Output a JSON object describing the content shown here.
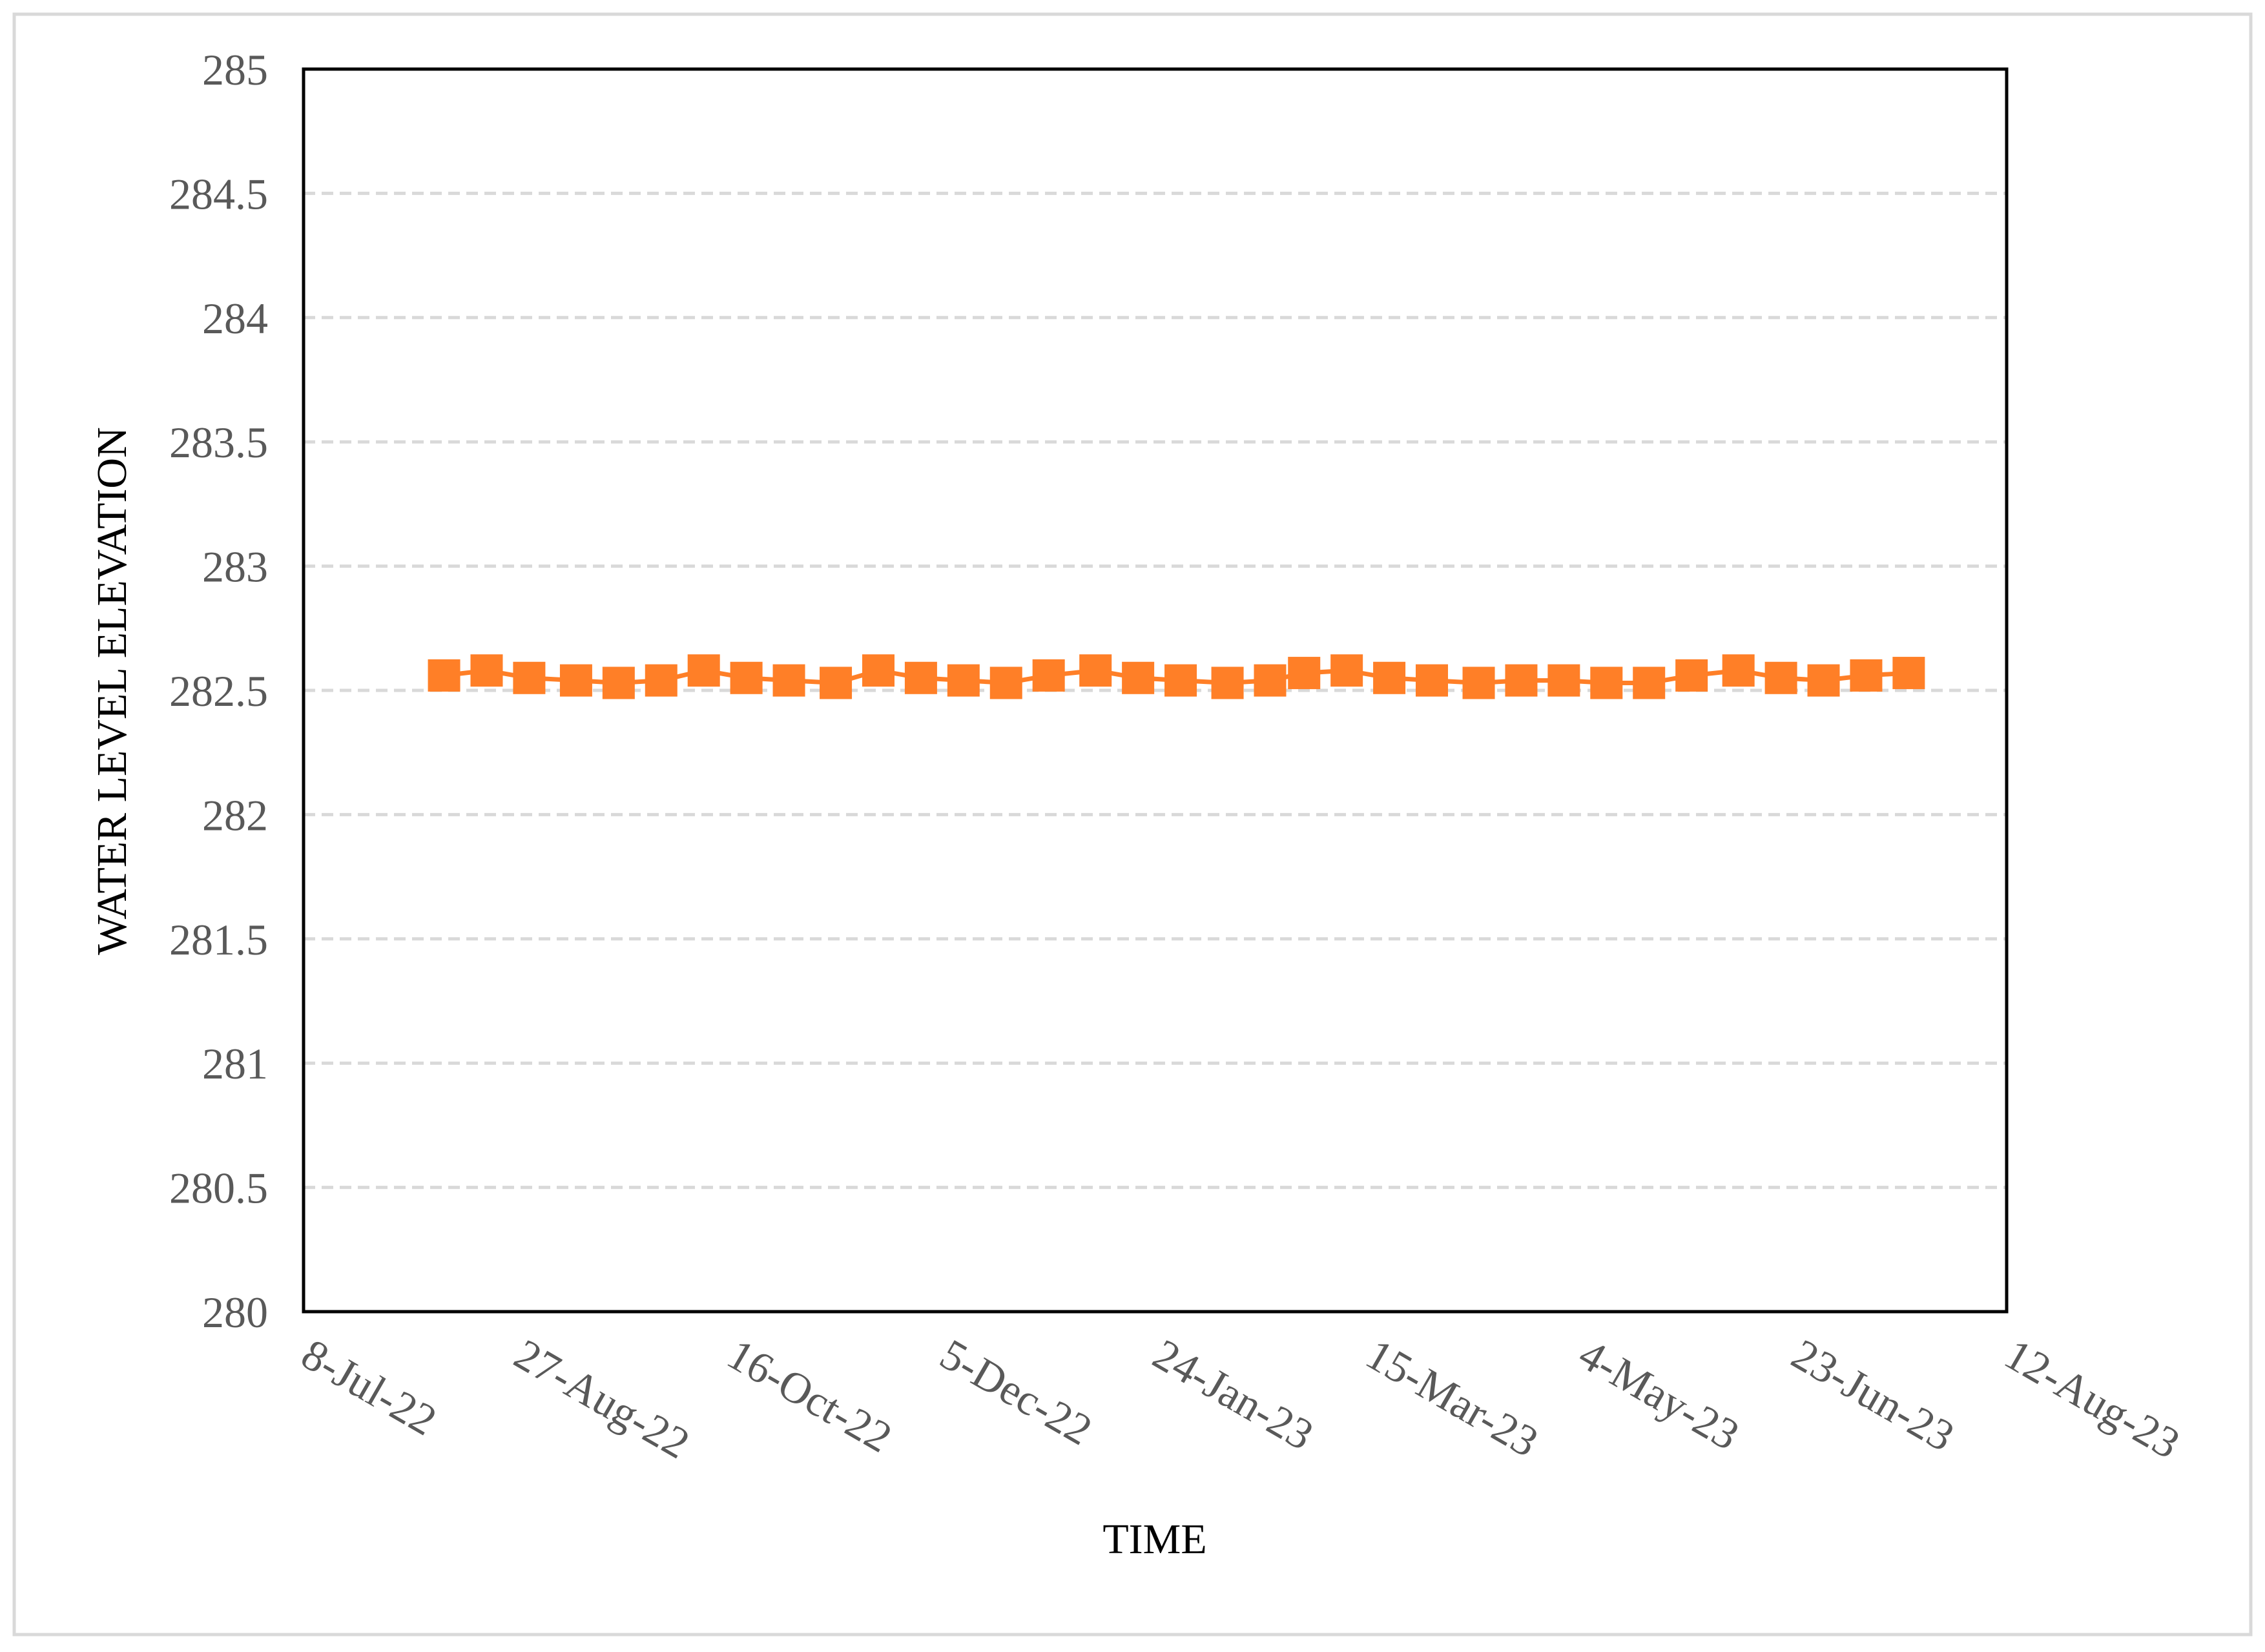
{
  "chart_data": {
    "type": "line",
    "x_label": "TIME",
    "y_label": "WATER LEVEL ELEVATION",
    "color": "#ff7f27",
    "marker": "square",
    "grid": true,
    "x": [
      "2022-08-10",
      "2022-08-20",
      "2022-08-30",
      "2022-09-10",
      "2022-09-20",
      "2022-09-30",
      "2022-10-10",
      "2022-10-20",
      "2022-10-30",
      "2022-11-10",
      "2022-11-20",
      "2022-11-30",
      "2022-12-10",
      "2022-12-20",
      "2022-12-30",
      "2023-01-10",
      "2023-01-20",
      "2023-01-30",
      "2023-02-10",
      "2023-02-20",
      "2023-02-28",
      "2023-03-10",
      "2023-03-20",
      "2023-03-30",
      "2023-04-10",
      "2023-04-20",
      "2023-04-30",
      "2023-05-10",
      "2023-05-20",
      "2023-05-30",
      "2023-06-10",
      "2023-06-20",
      "2023-06-30",
      "2023-07-10",
      "2023-07-20"
    ],
    "values": [
      282.56,
      282.58,
      282.55,
      282.54,
      282.53,
      282.54,
      282.58,
      282.55,
      282.54,
      282.53,
      282.58,
      282.55,
      282.54,
      282.53,
      282.56,
      282.58,
      282.55,
      282.54,
      282.53,
      282.54,
      282.57,
      282.58,
      282.55,
      282.54,
      282.53,
      282.54,
      282.54,
      282.53,
      282.53,
      282.56,
      282.58,
      282.55,
      282.54,
      282.56,
      282.57
    ],
    "xlim": [
      "2022-07-08",
      "2023-08-12"
    ],
    "xticks": [
      {
        "value": "2022-07-08",
        "label": "8-Jul-22"
      },
      {
        "value": "2022-08-27",
        "label": "27-Aug-22"
      },
      {
        "value": "2022-10-16",
        "label": "16-Oct-22"
      },
      {
        "value": "2022-12-05",
        "label": "5-Dec-22"
      },
      {
        "value": "2023-01-24",
        "label": "24-Jan-23"
      },
      {
        "value": "2023-03-15",
        "label": "15-Mar-23"
      },
      {
        "value": "2023-05-04",
        "label": "4-May-23"
      },
      {
        "value": "2023-06-23",
        "label": "23-Jun-23"
      },
      {
        "value": "2023-08-12",
        "label": "12-Aug-23"
      }
    ],
    "ylim": [
      280,
      285
    ],
    "yticks": [
      280,
      280.5,
      281,
      281.5,
      282,
      282.5,
      283,
      283.5,
      284,
      284.5,
      285
    ]
  }
}
